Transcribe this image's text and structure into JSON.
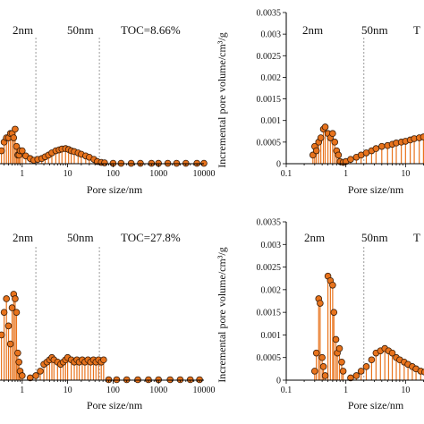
{
  "colors": {
    "marker_fill": "#e8731c",
    "marker_edge": "#3a1e0a",
    "stem": "#e8731c",
    "divider": "#9a9a9a",
    "axis": "#000000"
  },
  "chart_data": [
    {
      "type": "scatter",
      "panel": "top-left",
      "xlabel": "Pore size/nm",
      "ylabel": "",
      "xscale": "log",
      "xlim": [
        0.1,
        10000
      ],
      "ylim": [
        0,
        0.0035
      ],
      "x_tick_labels": [
        "1",
        "10",
        "100",
        "1000",
        "10000"
      ],
      "y_tick_labels": [],
      "regions": [
        "2nm",
        "50nm"
      ],
      "annotation": "TOC=8.66%",
      "points": [
        [
          0.35,
          0.0003
        ],
        [
          0.4,
          0.0005
        ],
        [
          0.45,
          0.0006
        ],
        [
          0.5,
          0.0006
        ],
        [
          0.55,
          0.0007
        ],
        [
          0.6,
          0.0007
        ],
        [
          0.65,
          0.0006
        ],
        [
          0.7,
          0.0008
        ],
        [
          0.75,
          0.0004
        ],
        [
          0.8,
          0.0002
        ],
        [
          0.85,
          0.0002
        ],
        [
          0.9,
          0.0003
        ],
        [
          1.0,
          0.0003
        ],
        [
          1.2,
          0.00018
        ],
        [
          1.5,
          0.00012
        ],
        [
          1.8,
          8e-05
        ],
        [
          2.2,
          0.0001
        ],
        [
          2.7,
          0.00012
        ],
        [
          3.2,
          0.00016
        ],
        [
          3.8,
          0.0002
        ],
        [
          4.5,
          0.00025
        ],
        [
          5.5,
          0.0003
        ],
        [
          6.5,
          0.00032
        ],
        [
          7.5,
          0.00034
        ],
        [
          9,
          0.00035
        ],
        [
          10.5,
          0.00033
        ],
        [
          12,
          0.0003
        ],
        [
          14,
          0.00028
        ],
        [
          17,
          0.00025
        ],
        [
          20,
          0.00022
        ],
        [
          25,
          0.00018
        ],
        [
          30,
          0.00015
        ],
        [
          38,
          0.0001
        ],
        [
          45,
          5e-05
        ],
        [
          55,
          3e-05
        ],
        [
          65,
          2e-05
        ],
        [
          100,
          1e-05
        ],
        [
          150,
          1e-05
        ],
        [
          250,
          1e-05
        ],
        [
          400,
          1e-05
        ],
        [
          700,
          1e-05
        ],
        [
          1000,
          1e-05
        ],
        [
          1600,
          1e-05
        ],
        [
          2500,
          1e-05
        ],
        [
          4000,
          1e-05
        ],
        [
          7000,
          1e-05
        ],
        [
          10000,
          1e-05
        ]
      ]
    },
    {
      "type": "scatter",
      "panel": "top-right",
      "xlabel": "Pore size/nm",
      "ylabel": "Incremental pore volume/cm³/g",
      "xscale": "log",
      "xlim": [
        0.1,
        100
      ],
      "ylim": [
        0,
        0.0035
      ],
      "x_tick_labels": [
        "0.1",
        "1",
        "10"
      ],
      "y_tick_labels": [
        "0",
        "0.0005",
        "0.001",
        "0.0015",
        "0.002",
        "0.0025",
        "0.003",
        "0.0035"
      ],
      "regions": [
        "2nm",
        "50nm"
      ],
      "annotation": "T",
      "points": [
        [
          0.28,
          0.0002
        ],
        [
          0.3,
          0.0004
        ],
        [
          0.32,
          0.0003
        ],
        [
          0.35,
          0.0005
        ],
        [
          0.38,
          0.0006
        ],
        [
          0.42,
          0.0008
        ],
        [
          0.45,
          0.00085
        ],
        [
          0.5,
          0.0007
        ],
        [
          0.55,
          0.0006
        ],
        [
          0.6,
          0.0007
        ],
        [
          0.65,
          0.0005
        ],
        [
          0.7,
          0.0003
        ],
        [
          0.75,
          0.0002
        ],
        [
          0.8,
          5e-05
        ],
        [
          0.9,
          3e-05
        ],
        [
          1.0,
          5e-05
        ],
        [
          1.2,
          0.0001
        ],
        [
          1.5,
          0.00015
        ],
        [
          1.8,
          0.0002
        ],
        [
          2.2,
          0.00025
        ],
        [
          2.7,
          0.0003
        ],
        [
          3.2,
          0.00035
        ],
        [
          4,
          0.0004
        ],
        [
          5,
          0.00042
        ],
        [
          6,
          0.00045
        ],
        [
          7,
          0.00048
        ],
        [
          8.5,
          0.0005
        ],
        [
          10,
          0.00052
        ],
        [
          12,
          0.00055
        ],
        [
          14,
          0.00058
        ],
        [
          17,
          0.0006
        ],
        [
          20,
          0.00062
        ],
        [
          24,
          0.00058
        ],
        [
          28,
          0.0006
        ],
        [
          33,
          0.00055
        ],
        [
          38,
          0.0006
        ],
        [
          44,
          0.00058
        ],
        [
          50,
          0.0005
        ],
        [
          55,
          0.0004
        ],
        [
          70,
          1e-05
        ],
        [
          85,
          1e-05
        ]
      ]
    },
    {
      "type": "scatter",
      "panel": "bottom-left",
      "xlabel": "Pore size/nm",
      "ylabel": "",
      "xscale": "log",
      "xlim": [
        0.1,
        10000
      ],
      "ylim": [
        0,
        0.0035
      ],
      "x_tick_labels": [
        "1",
        "10",
        "100",
        "1000",
        "10000"
      ],
      "y_tick_labels": [],
      "regions": [
        "2nm",
        "50nm"
      ],
      "annotation": "TOC=27.8%",
      "points": [
        [
          0.35,
          0.001
        ],
        [
          0.4,
          0.0015
        ],
        [
          0.45,
          0.0018
        ],
        [
          0.5,
          0.0012
        ],
        [
          0.55,
          0.0008
        ],
        [
          0.6,
          0.0016
        ],
        [
          0.65,
          0.0019
        ],
        [
          0.7,
          0.0018
        ],
        [
          0.75,
          0.0015
        ],
        [
          0.8,
          0.0006
        ],
        [
          0.85,
          0.0004
        ],
        [
          0.9,
          0.0002
        ],
        [
          1.0,
          0.0001
        ],
        [
          1.5,
          5e-05
        ],
        [
          2.0,
          0.0001
        ],
        [
          2.5,
          0.0002
        ],
        [
          3.0,
          0.00035
        ],
        [
          3.5,
          0.0004
        ],
        [
          4.0,
          0.00045
        ],
        [
          4.5,
          0.0005
        ],
        [
          5.0,
          0.00045
        ],
        [
          6,
          0.0004
        ],
        [
          7,
          0.00035
        ],
        [
          8,
          0.0004
        ],
        [
          9,
          0.00045
        ],
        [
          10,
          0.0005
        ],
        [
          12,
          0.00045
        ],
        [
          14,
          0.0004
        ],
        [
          16,
          0.00045
        ],
        [
          18,
          0.0004
        ],
        [
          21,
          0.00045
        ],
        [
          24,
          0.0004
        ],
        [
          28,
          0.00045
        ],
        [
          32,
          0.0004
        ],
        [
          37,
          0.00045
        ],
        [
          42,
          0.0004
        ],
        [
          48,
          0.00045
        ],
        [
          55,
          0.0004
        ],
        [
          62,
          0.00045
        ],
        [
          80,
          1e-05
        ],
        [
          120,
          1e-05
        ],
        [
          200,
          1e-05
        ],
        [
          350,
          1e-05
        ],
        [
          600,
          1e-05
        ],
        [
          1000,
          1e-05
        ],
        [
          1800,
          1e-05
        ],
        [
          3000,
          1e-05
        ],
        [
          5000,
          1e-05
        ],
        [
          8000,
          1e-05
        ]
      ]
    },
    {
      "type": "scatter",
      "panel": "bottom-right",
      "xlabel": "Pore size/nm",
      "ylabel": "Incremental pore volume/cm³/g",
      "xscale": "log",
      "xlim": [
        0.1,
        100
      ],
      "ylim": [
        0,
        0.0035
      ],
      "x_tick_labels": [
        "0.1",
        "1",
        "10"
      ],
      "y_tick_labels": [
        "0",
        "0.0005",
        "0.001",
        "0.0015",
        "0.002",
        "0.0025",
        "0.003",
        "0.0035"
      ],
      "regions": [
        "2nm",
        "50nm"
      ],
      "annotation": "T",
      "points": [
        [
          0.3,
          0.0002
        ],
        [
          0.32,
          0.0006
        ],
        [
          0.35,
          0.0018
        ],
        [
          0.37,
          0.0017
        ],
        [
          0.4,
          0.0005
        ],
        [
          0.42,
          0.0003
        ],
        [
          0.45,
          0.0001
        ],
        [
          0.5,
          0.0023
        ],
        [
          0.55,
          0.0022
        ],
        [
          0.6,
          0.0021
        ],
        [
          0.63,
          0.0015
        ],
        [
          0.68,
          0.0009
        ],
        [
          0.72,
          0.0006
        ],
        [
          0.78,
          0.0007
        ],
        [
          0.85,
          0.0004
        ],
        [
          0.9,
          0.0002
        ],
        [
          1.2,
          5e-05
        ],
        [
          1.5,
          0.0001
        ],
        [
          1.8,
          0.0002
        ],
        [
          2.2,
          0.0003
        ],
        [
          2.7,
          0.00045
        ],
        [
          3.2,
          0.0006
        ],
        [
          3.8,
          0.00065
        ],
        [
          4.5,
          0.0007
        ],
        [
          5.2,
          0.00065
        ],
        [
          6,
          0.0006
        ],
        [
          7,
          0.0005
        ],
        [
          8,
          0.00045
        ],
        [
          9.5,
          0.0004
        ],
        [
          11,
          0.00035
        ],
        [
          13,
          0.0003
        ],
        [
          15,
          0.00025
        ],
        [
          18,
          0.0002
        ],
        [
          21,
          0.00018
        ],
        [
          25,
          0.00015
        ],
        [
          30,
          0.00012
        ],
        [
          36,
          0.0001
        ],
        [
          44,
          8e-05
        ],
        [
          52,
          5e-05
        ],
        [
          62,
          3e-05
        ],
        [
          80,
          1e-05
        ]
      ]
    }
  ]
}
